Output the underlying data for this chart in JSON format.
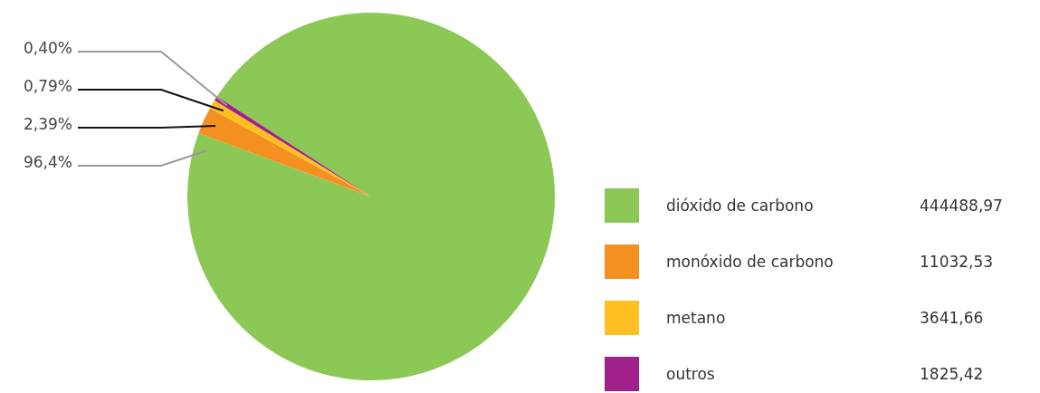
{
  "chart_data": {
    "type": "pie",
    "categories": [
      "dióxido de carbono",
      "monóxido de carbono",
      "metano",
      "outros"
    ],
    "values": [
      96.4,
      2.39,
      0.79,
      0.4
    ],
    "colors": [
      "#8cc855",
      "#f39020",
      "#fdc020",
      "#a0208c"
    ],
    "value_labels": [
      "96,4%",
      "2,39%",
      "0,79%",
      "0,40%"
    ],
    "annotations": [
      "444488,97",
      "11032,53",
      "3641,66",
      "1825,42"
    ],
    "legend": "right"
  }
}
